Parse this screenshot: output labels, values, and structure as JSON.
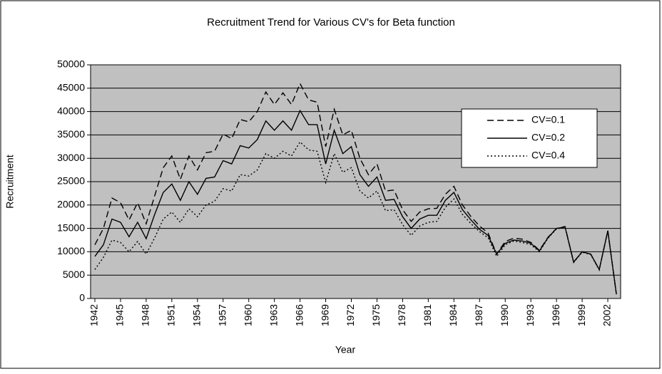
{
  "chart_data": {
    "type": "line",
    "title": "Recruitment Trend for Various CV's for Beta function",
    "xlabel": "Year",
    "ylabel": "Recruitment",
    "x": [
      1942,
      1943,
      1944,
      1945,
      1946,
      1947,
      1948,
      1949,
      1950,
      1951,
      1952,
      1953,
      1954,
      1955,
      1956,
      1957,
      1958,
      1959,
      1960,
      1961,
      1962,
      1963,
      1964,
      1965,
      1966,
      1967,
      1968,
      1969,
      1970,
      1971,
      1972,
      1973,
      1974,
      1975,
      1976,
      1977,
      1978,
      1979,
      1980,
      1981,
      1982,
      1983,
      1984,
      1985,
      1986,
      1987,
      1988,
      1989,
      1990,
      1991,
      1992,
      1993,
      1994,
      1995,
      1996,
      1997,
      1998,
      1999,
      2000,
      2001,
      2002,
      2003
    ],
    "xlim": [
      1941.5,
      2003.5
    ],
    "xticks": [
      1942,
      1945,
      1948,
      1951,
      1954,
      1957,
      1960,
      1963,
      1966,
      1969,
      1972,
      1975,
      1978,
      1981,
      1984,
      1987,
      1990,
      1993,
      1996,
      1999,
      2002
    ],
    "ylim": [
      0,
      50000
    ],
    "yticks": [
      0,
      5000,
      10000,
      15000,
      20000,
      25000,
      30000,
      35000,
      40000,
      45000,
      50000
    ],
    "grid": true,
    "legend": "upper right",
    "plot_background": "#c0c0c0",
    "series": [
      {
        "name": "CV=0.1",
        "color": "#000000",
        "dash": "dashed",
        "values": [
          11500,
          15000,
          21500,
          20500,
          16800,
          20500,
          16000,
          22000,
          28000,
          30500,
          25500,
          30500,
          27500,
          31200,
          31500,
          35200,
          34200,
          38300,
          37800,
          40000,
          44200,
          41500,
          44000,
          41500,
          46000,
          42500,
          42000,
          32500,
          40500,
          35000,
          36000,
          30000,
          26500,
          28800,
          23000,
          23200,
          19000,
          16500,
          18500,
          19200,
          19300,
          22300,
          24000,
          20000,
          17500,
          15500,
          14000,
          9500,
          12200,
          12900,
          12700,
          12000,
          10300,
          13100,
          15000,
          15400,
          7800,
          10000,
          9500,
          6200,
          14500,
          1000
        ]
      },
      {
        "name": "CV=0.2",
        "color": "#000000",
        "dash": "solid",
        "values": [
          9000,
          11500,
          17000,
          16300,
          13200,
          16300,
          12800,
          18000,
          22700,
          24500,
          21000,
          25000,
          22300,
          25700,
          26000,
          29500,
          28800,
          32700,
          32200,
          34000,
          38000,
          36000,
          38000,
          36000,
          40200,
          37200,
          37200,
          28800,
          36000,
          31000,
          32500,
          26500,
          24000,
          26000,
          21000,
          21200,
          17500,
          15000,
          17000,
          17800,
          17800,
          21000,
          22700,
          19000,
          16800,
          14800,
          13500,
          9500,
          11800,
          12500,
          12300,
          11800,
          10200,
          13000,
          15000,
          15300,
          7800,
          10000,
          9500,
          6200,
          14500,
          1000
        ]
      },
      {
        "name": "CV=0.4",
        "color": "#000000",
        "dash": "dotted",
        "values": [
          6200,
          8800,
          12500,
          12000,
          10000,
          12200,
          9500,
          13000,
          17000,
          18500,
          16300,
          19200,
          17500,
          20000,
          20800,
          23500,
          23000,
          26500,
          26200,
          27500,
          31000,
          30000,
          31500,
          30500,
          33500,
          31800,
          31500,
          24800,
          31000,
          27000,
          28000,
          23000,
          21500,
          23000,
          18800,
          19000,
          15800,
          13500,
          15500,
          16300,
          16500,
          19500,
          21300,
          18000,
          16000,
          14300,
          13000,
          9000,
          11500,
          12300,
          12000,
          11500,
          10000,
          12900,
          14900,
          15200,
          7700,
          9900,
          9400,
          6100,
          14400,
          900
        ]
      }
    ]
  }
}
